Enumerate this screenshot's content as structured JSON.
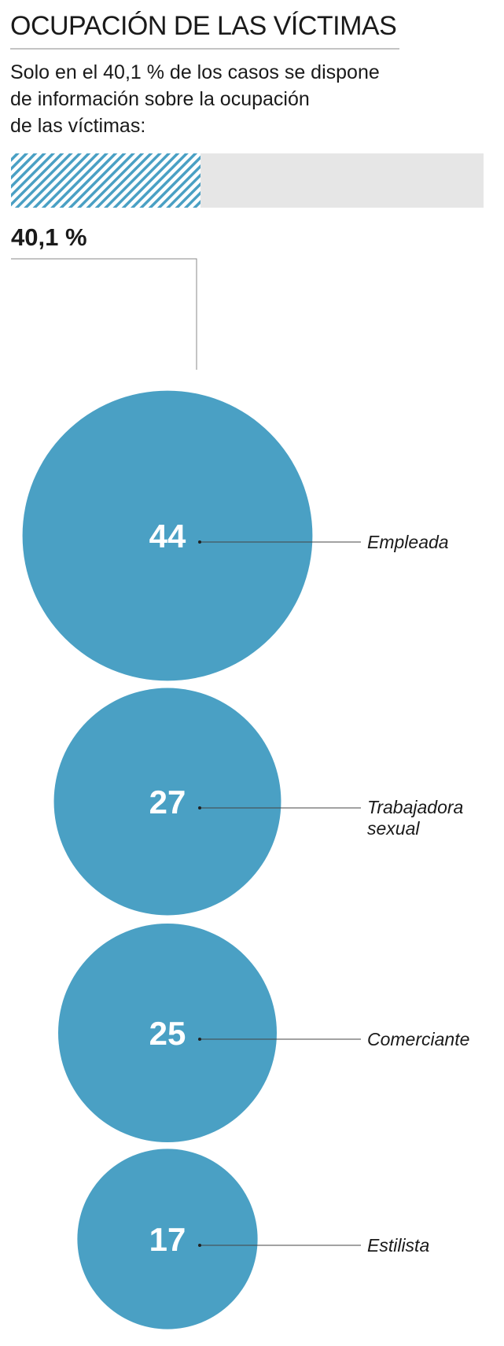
{
  "title": "OCUPACIÓN DE LAS VÍCTIMAS",
  "subtitle_lines": [
    "Solo en el 40,1 % de los casos se dispone",
    "de información sobre la ocupación",
    "de las víctimas:"
  ],
  "chart_data": [
    {
      "type": "progress",
      "values": [
        40.1
      ],
      "value_labels": [
        "40,1 %"
      ],
      "xlim": [
        0,
        100
      ],
      "color": "#4aa0c4",
      "track_color": "#e6e6e6"
    },
    {
      "type": "bubble",
      "categories": [
        "Empleada",
        "Trabajadora sexual",
        "Comerciante",
        "Estilista"
      ],
      "values": [
        44,
        27,
        25,
        17
      ],
      "color": "#4aa0c4"
    }
  ]
}
